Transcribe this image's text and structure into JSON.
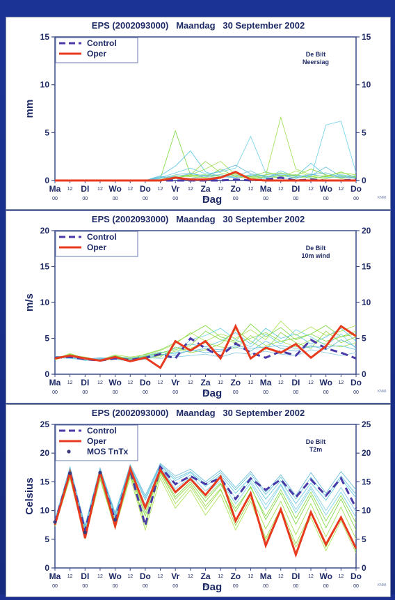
{
  "chart_data": [
    {
      "type": "line",
      "title": "EPS (2002093000)   Maandag   30 September 2002",
      "annotation": [
        "De Bilt",
        "Neersiag"
      ],
      "ylabel": "mm",
      "xlabel": "Dag",
      "ylim": [
        0,
        15
      ],
      "yticks": [
        0,
        5,
        10,
        15
      ],
      "x_range": [
        0,
        20
      ],
      "day_labels": [
        "Ma",
        "DI",
        "Wo",
        "Do",
        "Vr",
        "Za",
        "Zo",
        "Ma",
        "DI",
        "Wo",
        "Do"
      ],
      "midday_label": "12",
      "sub_label": "00",
      "corner_text": "KNMI",
      "legend": [
        {
          "name": "Control",
          "style": "dashed",
          "color": "#4a3aa8"
        },
        {
          "name": "Oper",
          "style": "solid",
          "color": "#e83a1e"
        }
      ],
      "series": [
        {
          "name": "Control",
          "x": [
            0,
            1,
            2,
            3,
            4,
            5,
            6,
            7,
            8,
            9,
            10,
            11,
            12,
            13,
            14,
            15,
            16,
            17,
            18,
            19,
            20
          ],
          "values": [
            0,
            0,
            0,
            0,
            0,
            0,
            0,
            0,
            0,
            0,
            0,
            0,
            0.1,
            0,
            0.1,
            0.3,
            0,
            0.1,
            0,
            0,
            0.1
          ]
        },
        {
          "name": "Oper",
          "x": [
            0,
            1,
            2,
            3,
            4,
            5,
            6,
            7,
            8,
            9,
            10,
            11,
            12,
            13,
            14,
            15,
            16,
            17,
            18,
            19,
            20
          ],
          "values": [
            0,
            0,
            0,
            0,
            0,
            0,
            0,
            0,
            0.3,
            0.1,
            0.1,
            0.3,
            0.9,
            0.1,
            0,
            0,
            0,
            0,
            0,
            0,
            0
          ]
        }
      ],
      "ensemble": [
        [
          0,
          0,
          0,
          0,
          0,
          0,
          0,
          0.2,
          5.2,
          0.6,
          0.3,
          1.2,
          0.4,
          0.2,
          0.3,
          0.5,
          0.3,
          0.4,
          0.2,
          0.5,
          0.2
        ],
        [
          0,
          0,
          0,
          0,
          0,
          0,
          0,
          0.5,
          1.5,
          3.1,
          0.9,
          0.4,
          0.3,
          0.5,
          0.2,
          1.0,
          0.4,
          1.8,
          0.5,
          0.6,
          0.4
        ],
        [
          0,
          0,
          0,
          0,
          0,
          0,
          0,
          0,
          0.4,
          0.6,
          1.2,
          2.0,
          0.6,
          0.3,
          0.5,
          6.6,
          1.2,
          0.6,
          0.4,
          0.3,
          0.5
        ],
        [
          0,
          0,
          0,
          0,
          0,
          0,
          0,
          0.3,
          0.8,
          1.3,
          0.7,
          0.9,
          1.3,
          4.6,
          0.8,
          0.4,
          0.6,
          0.3,
          5.8,
          6.2,
          0.8
        ],
        [
          0,
          0,
          0,
          0,
          0,
          0,
          0,
          0,
          0.2,
          0.6,
          2.0,
          0.8,
          0.5,
          0.4,
          0.6,
          0.8,
          0.5,
          1.2,
          0.6,
          0.2,
          0.4
        ],
        [
          0,
          0,
          0,
          0,
          0,
          0,
          0,
          0.4,
          0.3,
          0.2,
          0.5,
          1.0,
          1.6,
          0.7,
          0.5,
          0.2,
          0.3,
          0.5,
          1.4,
          0.4,
          0.3
        ],
        [
          0,
          0,
          0,
          0,
          0,
          0,
          0,
          0.1,
          0.5,
          0.4,
          0.3,
          0.6,
          0.4,
          0.2,
          0.4,
          0.3,
          1.0,
          0.4,
          0.5,
          0.8,
          0.6
        ],
        [
          0,
          0,
          0,
          0,
          0,
          0,
          0,
          0.2,
          0.6,
          0.8,
          0.4,
          0.3,
          0.5,
          1.0,
          0.3,
          0.6,
          0.2,
          0.7,
          0.3,
          0.4,
          0.2
        ],
        [
          0,
          0,
          0,
          0,
          0,
          0,
          0,
          0,
          0.3,
          0.5,
          0.6,
          0.4,
          0.7,
          0.4,
          0.9,
          0.5,
          0.6,
          0.2,
          0.4,
          0.9,
          0.3
        ],
        [
          0,
          0,
          0,
          0,
          0,
          0,
          0,
          0.3,
          0.4,
          0.7,
          0.5,
          0.6,
          0.3,
          0.6,
          0.4,
          0.7,
          0.4,
          0.6,
          0.8,
          0.3,
          0.5
        ]
      ]
    },
    {
      "type": "line",
      "title": "EPS (2002093000)   Maandag   30 September 2002",
      "annotation": [
        "De Bilt",
        "10m wind"
      ],
      "ylabel": "m/s",
      "xlabel": "Dag",
      "ylim": [
        0,
        20
      ],
      "yticks": [
        0,
        5,
        10,
        15,
        20
      ],
      "x_range": [
        0,
        20
      ],
      "day_labels": [
        "Ma",
        "DI",
        "Wo",
        "Do",
        "Vr",
        "Za",
        "Zo",
        "Ma",
        "DI",
        "Wo",
        "Do"
      ],
      "midday_label": "12",
      "sub_label": "00",
      "corner_text": "KNMI",
      "legend": [
        {
          "name": "Control",
          "style": "dashed",
          "color": "#4a3aa8"
        },
        {
          "name": "Oper",
          "style": "solid",
          "color": "#e83a1e"
        }
      ],
      "series": [
        {
          "name": "Control",
          "x": [
            0,
            1,
            2,
            3,
            4,
            5,
            6,
            7,
            8,
            9,
            10,
            11,
            12,
            13,
            14,
            15,
            16,
            17,
            18,
            19,
            20
          ],
          "values": [
            2.3,
            2.4,
            2.1,
            1.9,
            2.2,
            2.0,
            2.3,
            2.8,
            2.2,
            5.0,
            3.6,
            2.5,
            4.3,
            3.0,
            2.3,
            3.2,
            2.6,
            4.8,
            3.6,
            3.0,
            2.2
          ]
        },
        {
          "name": "Oper",
          "x": [
            0,
            1,
            2,
            3,
            4,
            5,
            6,
            7,
            8,
            9,
            10,
            11,
            12,
            13,
            14,
            15,
            16,
            17,
            18,
            19,
            20
          ],
          "values": [
            2.2,
            2.6,
            2.2,
            1.9,
            2.4,
            1.8,
            2.3,
            0.9,
            4.6,
            3.3,
            4.6,
            2.2,
            6.7,
            2.2,
            3.7,
            3.0,
            4.2,
            2.3,
            3.9,
            6.7,
            5.3
          ]
        }
      ],
      "ensemble": [
        [
          2.1,
          2.8,
          2.3,
          2.0,
          2.6,
          2.1,
          2.8,
          3.4,
          4.4,
          5.6,
          6.8,
          5.2,
          4.6,
          7.0,
          5.2,
          6.5,
          4.8,
          5.6,
          6.8,
          5.2,
          6.0
        ],
        [
          2.4,
          2.5,
          1.9,
          2.2,
          2.4,
          2.3,
          2.5,
          2.9,
          3.6,
          4.2,
          3.8,
          4.6,
          5.8,
          4.2,
          6.4,
          5.0,
          5.6,
          4.2,
          5.2,
          6.4,
          4.6
        ],
        [
          2.0,
          2.7,
          2.2,
          1.8,
          2.2,
          1.9,
          2.2,
          2.6,
          3.2,
          3.6,
          4.4,
          3.8,
          3.6,
          5.4,
          4.0,
          4.6,
          3.8,
          4.8,
          4.2,
          3.8,
          4.4
        ],
        [
          2.3,
          2.2,
          2.0,
          2.1,
          2.5,
          2.0,
          2.6,
          3.1,
          2.8,
          4.8,
          5.4,
          6.4,
          4.8,
          3.8,
          5.6,
          4.2,
          6.2,
          5.2,
          4.0,
          5.6,
          3.6
        ],
        [
          2.2,
          2.6,
          2.4,
          1.9,
          2.3,
          2.2,
          2.4,
          2.4,
          3.8,
          3.0,
          3.4,
          4.2,
          6.2,
          4.6,
          3.4,
          5.8,
          4.4,
          3.6,
          6.0,
          4.4,
          5.2
        ],
        [
          2.5,
          2.4,
          2.1,
          2.3,
          2.1,
          1.8,
          2.1,
          2.8,
          2.6,
          3.4,
          3.0,
          3.2,
          3.8,
          3.2,
          4.6,
          3.6,
          3.2,
          4.0,
          3.4,
          4.8,
          3.8
        ],
        [
          2.1,
          2.9,
          2.2,
          2.0,
          2.7,
          2.4,
          2.7,
          3.3,
          4.2,
          5.8,
          4.6,
          5.6,
          5.0,
          6.2,
          4.8,
          7.4,
          5.4,
          6.6,
          5.4,
          6.0,
          6.8
        ],
        [
          2.4,
          2.3,
          2.0,
          2.2,
          2.2,
          2.0,
          2.3,
          2.2,
          2.4,
          2.6,
          2.8,
          2.4,
          3.0,
          2.8,
          3.2,
          2.8,
          2.6,
          3.4,
          3.0,
          2.6,
          3.0
        ],
        [
          2.2,
          2.7,
          2.3,
          1.9,
          2.5,
          2.1,
          2.5,
          3.0,
          3.4,
          4.0,
          6.0,
          4.8,
          4.4,
          5.0,
          5.8,
          4.6,
          5.0,
          5.6,
          4.6,
          5.2,
          5.6
        ],
        [
          2.3,
          2.5,
          2.1,
          2.1,
          2.3,
          2.1,
          2.4,
          2.7,
          3.0,
          3.2,
          3.6,
          3.4,
          4.0,
          3.6,
          3.8,
          4.0,
          3.6,
          3.8,
          3.8,
          4.0,
          3.4
        ]
      ]
    },
    {
      "type": "line",
      "title": "EPS (2002093000)   Maandag   30 September 2002",
      "annotation": [
        "De Bilt",
        "T2m"
      ],
      "ylabel": "Celsius",
      "xlabel": "Dag",
      "ylim": [
        0,
        25
      ],
      "yticks": [
        0,
        5,
        10,
        15,
        20,
        25
      ],
      "x_range": [
        0,
        20
      ],
      "day_labels": [
        "Ma",
        "DI",
        "Wo",
        "Do",
        "Vr",
        "Za",
        "Zo",
        "Ma",
        "DI",
        "Wo",
        "Do"
      ],
      "midday_label": "12",
      "sub_label": "00",
      "corner_text": "KNMI",
      "legend": [
        {
          "name": "Control",
          "style": "dashed",
          "color": "#4a3aa8"
        },
        {
          "name": "Oper",
          "style": "solid",
          "color": "#e83a1e"
        },
        {
          "name": "MOS TnTx",
          "style": "marker",
          "color": "#3a3a7a"
        }
      ],
      "series": [
        {
          "name": "Control",
          "x": [
            0,
            1,
            2,
            3,
            4,
            5,
            6,
            7,
            8,
            9,
            10,
            11,
            12,
            13,
            14,
            15,
            16,
            17,
            18,
            19,
            20
          ],
          "values": [
            7.9,
            16.8,
            6.5,
            16.6,
            8.3,
            17.0,
            7.4,
            17.6,
            14.6,
            16.0,
            14.6,
            15.6,
            12.0,
            15.6,
            13.6,
            15.4,
            12.3,
            15.4,
            12.6,
            15.6,
            10.4
          ]
        },
        {
          "name": "Oper",
          "x": [
            0,
            1,
            2,
            3,
            4,
            5,
            6,
            7,
            8,
            9,
            10,
            11,
            12,
            13,
            14,
            15,
            16,
            17,
            18,
            19,
            20
          ],
          "values": [
            7.5,
            16.6,
            5.2,
            16.8,
            7.3,
            17.3,
            10.5,
            17.1,
            13.2,
            15.5,
            12.7,
            15.9,
            8.2,
            13.0,
            3.9,
            10.2,
            2.3,
            9.7,
            4.1,
            8.8,
            3.4
          ]
        }
      ],
      "ensemble": [
        [
          7.8,
          16.2,
          6.0,
          16.0,
          8.0,
          16.6,
          9.0,
          16.8,
          12.4,
          15.0,
          11.6,
          14.6,
          9.8,
          14.2,
          8.4,
          13.0,
          7.6,
          12.6,
          7.0,
          12.0,
          6.6
        ],
        [
          8.2,
          17.2,
          7.0,
          17.0,
          9.2,
          17.6,
          11.8,
          17.8,
          15.2,
          16.6,
          14.2,
          16.2,
          13.0,
          15.8,
          12.0,
          15.2,
          11.2,
          14.8,
          11.8,
          15.6,
          12.2
        ],
        [
          7.4,
          15.8,
          5.4,
          15.6,
          7.2,
          16.2,
          8.0,
          16.2,
          11.2,
          14.2,
          10.2,
          13.6,
          8.2,
          12.8,
          6.8,
          11.6,
          5.8,
          11.2,
          5.4,
          10.6,
          5.0
        ],
        [
          8.0,
          16.6,
          6.4,
          16.4,
          8.6,
          17.0,
          10.4,
          17.4,
          13.8,
          15.8,
          12.8,
          15.2,
          11.2,
          14.8,
          10.2,
          14.4,
          9.6,
          13.8,
          9.2,
          13.2,
          8.8
        ],
        [
          7.6,
          16.0,
          5.8,
          16.2,
          7.6,
          16.4,
          7.4,
          16.6,
          12.0,
          14.6,
          10.8,
          13.8,
          7.4,
          12.2,
          5.2,
          10.4,
          4.2,
          9.6,
          3.6,
          9.0,
          3.0
        ],
        [
          8.4,
          17.6,
          7.4,
          17.4,
          9.6,
          18.0,
          12.6,
          18.2,
          16.0,
          17.2,
          15.0,
          17.0,
          14.0,
          16.8,
          13.2,
          16.2,
          12.6,
          16.6,
          13.0,
          16.8,
          13.6
        ],
        [
          7.2,
          15.6,
          5.0,
          15.4,
          6.8,
          15.8,
          6.6,
          15.6,
          10.4,
          13.6,
          9.2,
          12.8,
          6.6,
          11.6,
          4.8,
          9.8,
          3.6,
          8.8,
          3.0,
          8.2,
          2.6
        ],
        [
          8.1,
          16.9,
          6.7,
          16.8,
          8.8,
          17.2,
          11.0,
          17.6,
          14.4,
          16.2,
          13.4,
          15.6,
          12.2,
          15.2,
          11.0,
          14.6,
          10.2,
          14.2,
          10.0,
          14.0,
          9.8
        ],
        [
          7.7,
          16.4,
          6.2,
          16.2,
          8.2,
          16.8,
          9.6,
          17.0,
          13.0,
          15.4,
          12.2,
          14.8,
          10.4,
          14.0,
          9.0,
          13.6,
          8.6,
          13.2,
          8.2,
          12.6,
          7.8
        ],
        [
          8.3,
          17.4,
          7.2,
          17.2,
          9.4,
          17.8,
          12.2,
          18.0,
          15.6,
          16.8,
          14.6,
          16.6,
          13.6,
          16.4,
          12.8,
          15.8,
          12.0,
          15.8,
          12.4,
          16.0,
          12.8
        ]
      ],
      "mos": [
        {
          "x": 0,
          "value": 8.0
        },
        {
          "x": 1,
          "value": 16.5
        },
        {
          "x": 2,
          "value": 6.2
        },
        {
          "x": 3,
          "value": 16.6
        },
        {
          "x": 4,
          "value": 8.4
        }
      ]
    }
  ]
}
